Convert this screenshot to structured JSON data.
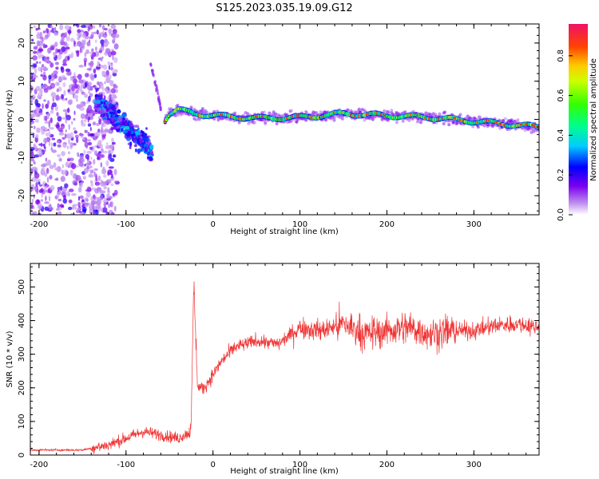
{
  "figure_title": "S125.2023.035.19.09.G12",
  "chart_data": [
    {
      "type": "heatmap",
      "xlabel": "Height of straight line (km)",
      "ylabel": "Frequency (Hz)",
      "xlim": [
        -210,
        375
      ],
      "ylim": [
        -25,
        25
      ],
      "x_ticks": [
        -200,
        -100,
        0,
        100,
        200,
        300
      ],
      "y_ticks": [
        -20,
        -10,
        0,
        10,
        20
      ],
      "colorbar": {
        "label": "Normalized spectral amplitude",
        "range": [
          0.0,
          0.96
        ],
        "ticks": [
          0.0,
          0.2,
          0.4,
          0.6,
          0.8
        ]
      },
      "ridge": {
        "description_x": [
          -65,
          -60,
          -55,
          -50,
          -40,
          -20,
          0,
          50,
          100,
          150,
          200,
          250,
          300,
          350,
          375
        ],
        "frequency_hz": [
          -6,
          -3,
          0,
          1.5,
          2.5,
          1.5,
          1,
          0.3,
          0.5,
          1.5,
          1,
          0.5,
          -0.5,
          -1.5,
          -2
        ]
      },
      "grid": false
    },
    {
      "type": "line",
      "xlabel": "Height of straight line (km)",
      "ylabel": "SNR (10 * v/v)",
      "xlim": [
        -210,
        375
      ],
      "ylim": [
        0,
        570
      ],
      "x_ticks": [
        -200,
        -100,
        0,
        100,
        200,
        300
      ],
      "y_ticks": [
        0,
        100,
        200,
        300,
        400,
        500
      ],
      "color": "#ee3333",
      "series": [
        {
          "x": [
            -210,
            -150,
            -120,
            -100,
            -80,
            -60,
            -40,
            -25,
            -22,
            -18,
            -10,
            0,
            10,
            25,
            50,
            75,
            100,
            125,
            150,
            175,
            200,
            225,
            250,
            275,
            300,
            325,
            350,
            375
          ],
          "y": [
            15,
            15,
            30,
            50,
            70,
            60,
            50,
            70,
            480,
            200,
            200,
            240,
            280,
            320,
            340,
            330,
            380,
            370,
            390,
            360,
            370,
            380,
            360,
            370,
            370,
            385,
            390,
            380
          ]
        }
      ],
      "grid": false
    }
  ]
}
